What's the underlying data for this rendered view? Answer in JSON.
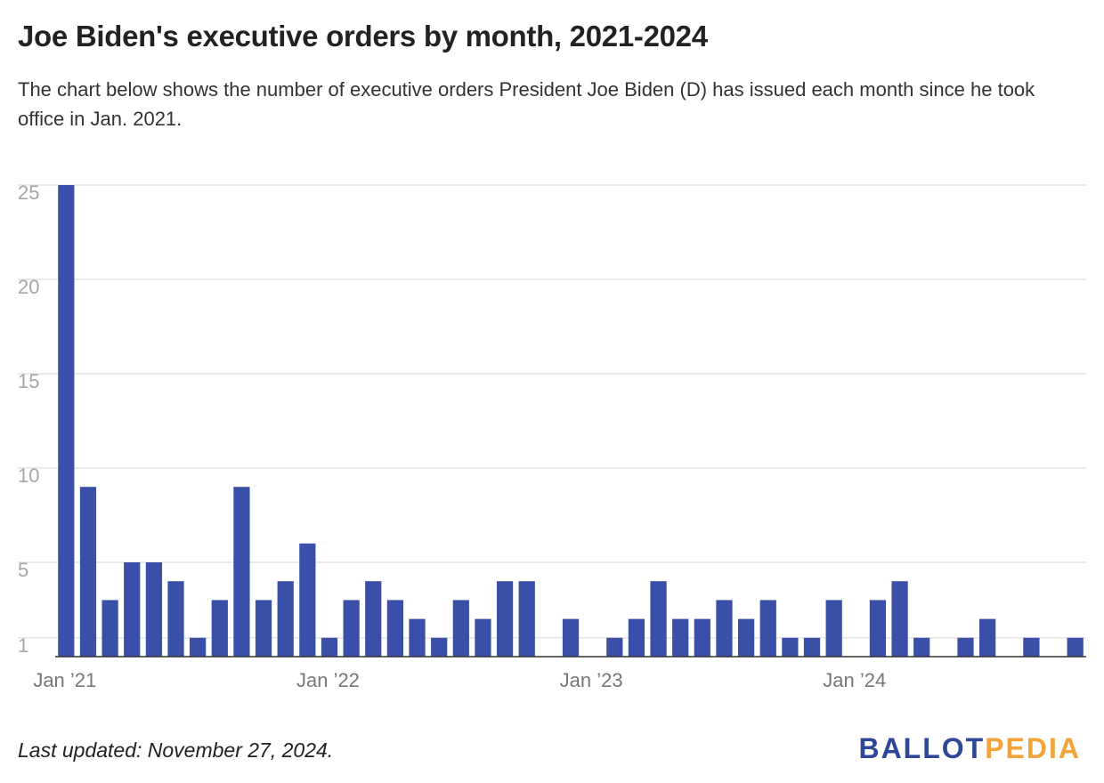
{
  "header": {
    "title": "Joe Biden's executive orders by month, 2021-2024",
    "subtitle": "The chart below shows the number of executive orders President Joe Biden (D) has issued each month since he took office in Jan. 2021."
  },
  "footer": {
    "note": "Last updated: November 27, 2024.",
    "logo_part1": "BALLOT",
    "logo_part2": "PEDIA"
  },
  "colors": {
    "bar": "#3a4fa8",
    "grid": "#dddddd",
    "baseline": "#333333",
    "logo_primary": "#2e4799",
    "logo_accent": "#f2a33a"
  },
  "chart_data": {
    "type": "bar",
    "title": "Joe Biden's executive orders by month, 2021-2024",
    "xlabel": "",
    "ylabel": "",
    "ylim": [
      0,
      25
    ],
    "y_ticks": [
      1,
      5,
      10,
      15,
      20,
      25
    ],
    "grid": true,
    "categories": [
      "Jan 2021",
      "Feb 2021",
      "Mar 2021",
      "Apr 2021",
      "May 2021",
      "Jun 2021",
      "Jul 2021",
      "Aug 2021",
      "Sep 2021",
      "Oct 2021",
      "Nov 2021",
      "Dec 2021",
      "Jan 2022",
      "Feb 2022",
      "Mar 2022",
      "Apr 2022",
      "May 2022",
      "Jun 2022",
      "Jul 2022",
      "Aug 2022",
      "Sep 2022",
      "Oct 2022",
      "Nov 2022",
      "Dec 2022",
      "Jan 2023",
      "Feb 2023",
      "Mar 2023",
      "Apr 2023",
      "May 2023",
      "Jun 2023",
      "Jul 2023",
      "Aug 2023",
      "Sep 2023",
      "Oct 2023",
      "Nov 2023",
      "Dec 2023",
      "Jan 2024",
      "Feb 2024",
      "Mar 2024",
      "Apr 2024",
      "May 2024",
      "Jun 2024",
      "Jul 2024",
      "Aug 2024",
      "Sep 2024",
      "Oct 2024",
      "Nov 2024"
    ],
    "values": [
      25,
      9,
      3,
      5,
      5,
      4,
      1,
      3,
      9,
      3,
      4,
      6,
      1,
      3,
      4,
      3,
      2,
      1,
      3,
      2,
      4,
      4,
      0,
      2,
      0,
      1,
      2,
      4,
      2,
      2,
      3,
      2,
      3,
      1,
      1,
      3,
      0,
      3,
      4,
      1,
      0,
      1,
      2,
      0,
      1,
      0,
      1
    ],
    "x_tick_labels": [
      {
        "index": 0,
        "label": "Jan ’21"
      },
      {
        "index": 12,
        "label": "Jan ’22"
      },
      {
        "index": 24,
        "label": "Jan ’23"
      },
      {
        "index": 36,
        "label": "Jan ’24"
      }
    ]
  }
}
